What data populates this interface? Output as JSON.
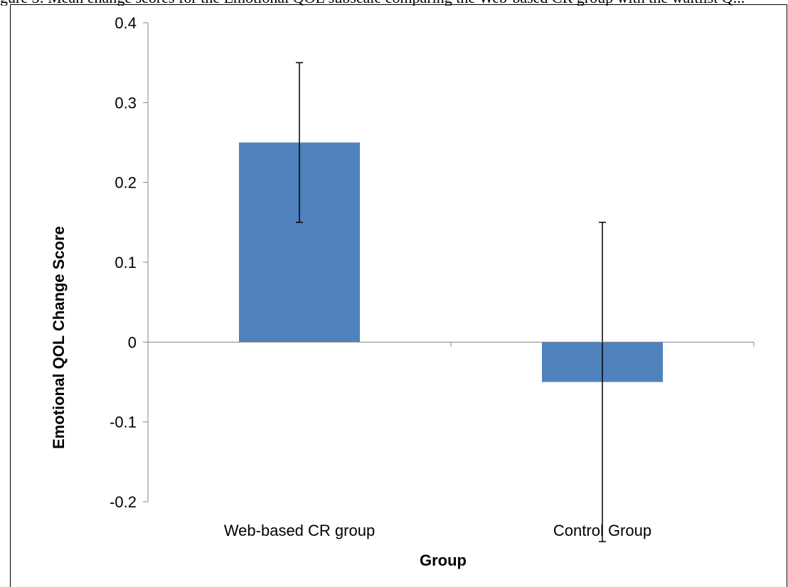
{
  "caption": "gure 3: Mean change scores for the Emotional QOL subscale comparing the Web-based CR group with the waitlist Q...",
  "chart_data": {
    "type": "bar",
    "categories": [
      "Web-based CR group",
      "Control Group"
    ],
    "values": [
      0.25,
      -0.05
    ],
    "error_bars": [
      0.1,
      0.2
    ],
    "xlabel": "Group",
    "ylabel": "Emotional QOL Change Score",
    "ylim": [
      -0.2,
      0.4
    ],
    "yticks": [
      -0.2,
      -0.1,
      0,
      0.1,
      0.2,
      0.3,
      0.4
    ],
    "ytick_labels": [
      "-0.2",
      "-0.1",
      "0",
      "0.1",
      "0.2",
      "0.3",
      "0.4"
    ],
    "bar_color": "#4F81BD",
    "grid": false,
    "legend": "none"
  }
}
